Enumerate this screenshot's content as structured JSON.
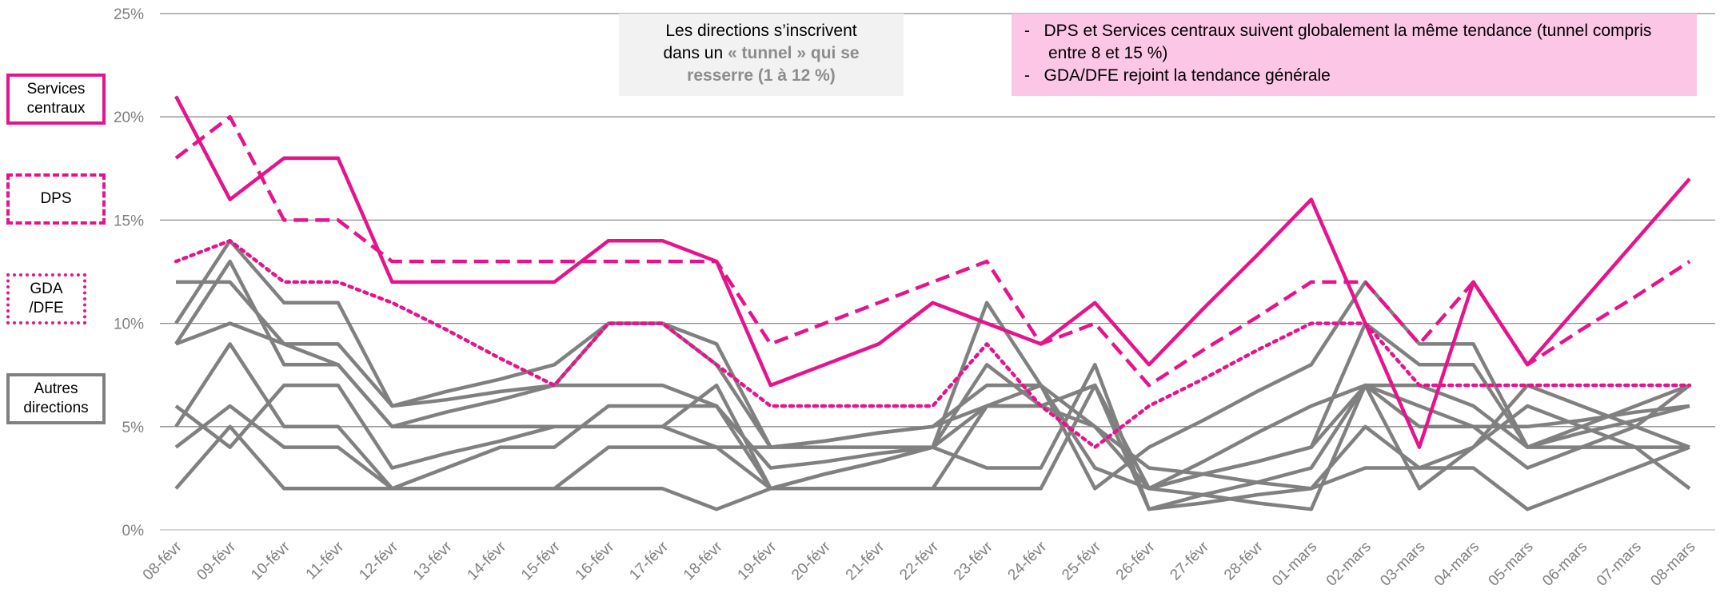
{
  "chart_data": {
    "type": "line",
    "categories": [
      "08-févr",
      "09-févr",
      "10-févr",
      "11-févr",
      "12-févr",
      "13-févr",
      "14-févr",
      "15-févr",
      "16-févr",
      "17-févr",
      "18-févr",
      "19-févr",
      "20-févr",
      "21-févr",
      "22-févr",
      "23-févr",
      "24-févr",
      "25-févr",
      "26-févr",
      "27-févr",
      "28-févr",
      "01-mars",
      "02-mars",
      "03-mars",
      "04-mars",
      "05-mars",
      "06-mars",
      "07-mars",
      "08-mars"
    ],
    "ylim": [
      0,
      25
    ],
    "yticks": [
      {
        "value": 0,
        "label": "0%"
      },
      {
        "value": 5,
        "label": "5%"
      },
      {
        "value": 10,
        "label": "10%"
      },
      {
        "value": 15,
        "label": "15%"
      },
      {
        "value": 20,
        "label": "20%"
      },
      {
        "value": 25,
        "label": "25%"
      }
    ],
    "grid": true,
    "series": [
      {
        "color": "#808080",
        "style": "solid",
        "values": [
          12,
          12,
          9,
          9,
          6,
          6.3,
          6.7,
          7,
          10,
          10,
          9,
          4,
          4.3,
          4.7,
          5,
          6,
          6,
          7,
          2,
          2.7,
          3.3,
          4,
          7,
          7,
          6,
          4,
          4.7,
          5.3,
          6
        ]
      },
      {
        "color": "#808080",
        "style": "solid",
        "values": [
          9,
          13,
          8,
          8,
          5,
          5,
          5,
          5,
          5,
          5,
          4,
          2,
          2.7,
          3.3,
          4,
          11,
          7,
          2,
          4,
          5.3,
          6.7,
          8,
          12,
          9,
          9,
          4,
          4,
          4,
          4
        ]
      },
      {
        "color": "#808080",
        "style": "solid",
        "values": [
          10,
          14,
          11,
          11,
          6,
          6.7,
          7.3,
          8,
          10,
          10,
          8,
          4,
          4.3,
          4.7,
          5,
          7,
          7,
          5,
          2,
          2.7,
          3.3,
          4,
          10,
          8,
          8,
          4,
          5,
          6,
          7
        ]
      },
      {
        "color": "#808080",
        "style": "solid",
        "values": [
          5,
          9,
          5,
          5,
          2,
          2,
          2,
          2,
          4,
          4,
          4,
          4,
          4,
          4,
          4,
          8,
          6,
          5,
          3,
          2.7,
          2.3,
          2,
          5,
          3,
          4,
          7,
          6,
          5,
          4
        ]
      },
      {
        "color": "#808080",
        "style": "solid",
        "values": [
          9,
          10,
          9,
          8,
          5,
          5.7,
          6.3,
          7,
          7,
          7,
          6,
          3,
          3.3,
          3.7,
          4,
          6,
          6,
          7,
          2,
          3.3,
          4.7,
          6,
          7,
          5,
          5,
          5,
          5.3,
          5.7,
          6
        ]
      },
      {
        "color": "#808080",
        "style": "solid",
        "values": [
          4,
          6,
          4,
          4,
          2,
          3,
          4,
          4,
          6,
          6,
          6,
          2,
          2.7,
          3.3,
          4,
          3,
          3,
          8,
          1,
          1.7,
          2.3,
          3,
          7,
          6,
          5,
          3,
          4,
          5,
          7
        ]
      },
      {
        "color": "#808080",
        "style": "solid",
        "values": [
          2,
          5,
          2,
          2,
          2,
          2,
          2,
          2,
          2,
          2,
          1,
          2,
          2,
          2,
          2,
          2,
          2,
          7,
          1,
          1.3,
          1.7,
          2,
          3,
          3,
          3,
          1,
          2,
          3,
          4
        ]
      },
      {
        "color": "#808080",
        "style": "solid",
        "values": [
          6,
          4,
          7,
          7,
          3,
          3.7,
          4.3,
          5,
          5,
          5,
          7,
          2,
          2,
          2,
          2,
          6,
          7,
          3,
          2,
          1.7,
          1.3,
          1,
          7,
          2,
          4,
          6,
          5,
          4,
          2
        ]
      },
      {
        "name": "GDA /DFE",
        "color": "#e5148c",
        "style": "dotted",
        "values": [
          13,
          14,
          12,
          12,
          11,
          9.7,
          8.3,
          7,
          10,
          10,
          8,
          6,
          6,
          6,
          6,
          9,
          6,
          4,
          6,
          7.3,
          8.7,
          10,
          10,
          7,
          7,
          7,
          7,
          7,
          7
        ]
      },
      {
        "name": "DPS",
        "color": "#e5148c",
        "style": "dashed",
        "values": [
          18,
          20,
          15,
          15,
          13,
          13,
          13,
          13,
          13,
          13,
          13,
          9,
          10,
          11,
          12,
          13,
          9,
          10,
          7,
          8.7,
          10.3,
          12,
          12,
          9,
          12,
          8,
          9.7,
          11.3,
          13
        ]
      },
      {
        "name": "Services centraux",
        "color": "#e5148c",
        "style": "solid",
        "values": [
          21,
          16,
          18,
          18,
          12,
          12,
          12,
          12,
          14,
          14,
          13,
          7,
          8,
          9,
          11,
          10,
          9,
          11,
          8,
          10.7,
          13.3,
          16,
          10,
          4,
          12,
          8,
          11,
          14,
          17
        ]
      }
    ],
    "others_label": "Autres directions",
    "note_gray": [
      {
        "text": "Les directions s’inscrivent",
        "bold": false,
        "newline": false
      },
      {
        "text": "dans un ",
        "bold": false,
        "newline": true
      },
      {
        "text": "« tunnel » qui se",
        "bold": true,
        "newline": false
      },
      {
        "text": "resserre (1 à 12 %)",
        "bold": true,
        "newline": true
      }
    ],
    "note_pink": [
      "-   DPS et Services centraux suivent globalement la même tendance (tunnel compris entre 8 et 15 %)",
      "-   GDA/DFE rejoint la tendance générale"
    ]
  }
}
